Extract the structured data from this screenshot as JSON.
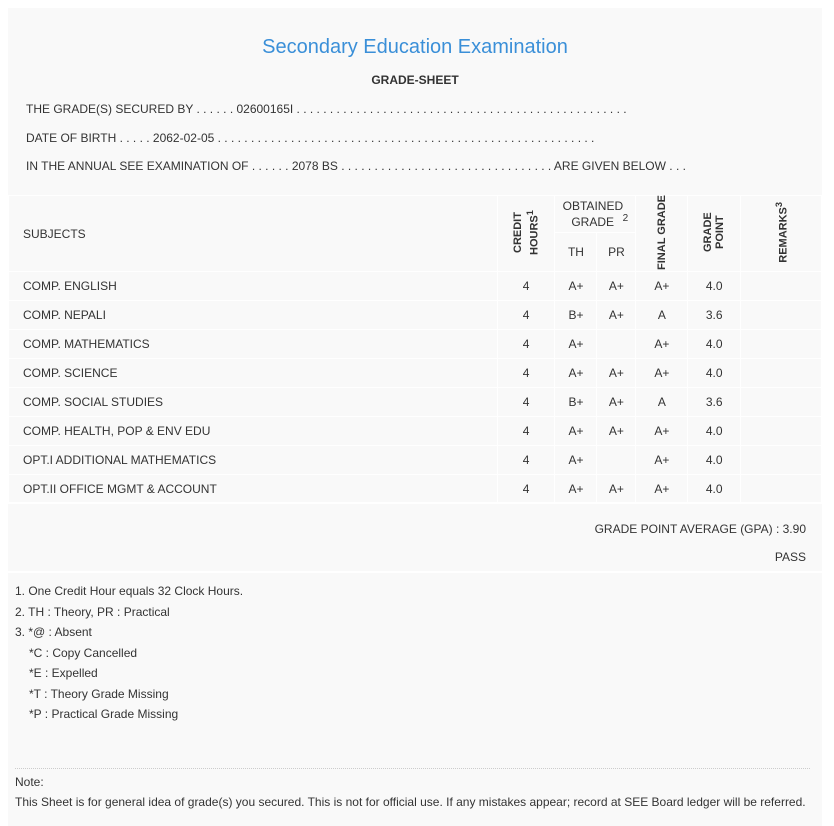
{
  "title": "Secondary Education Examination",
  "subtitle": "GRADE-SHEET",
  "info": {
    "secured_by": "THE GRADE(S) SECURED BY . . . . . . 02600165I . . . . . . . . . . . . . . . . . . . . . . . . . . . . . . . . . . . . . . . . . . . . . . . . . .",
    "dob": "DATE OF BIRTH . . . . . 2062-02-05 . . . . . . . . . . . . . . . . . . . . . . . . . . . . . . . . . . . . . . . . . . . . . . . . . . . . . . . . .",
    "exam": "IN THE ANNUAL SEE EXAMINATION OF . . . . . . 2078 BS . . . . . . . . . . . . . . . . . . . . . . . . . . . . . . . . ARE GIVEN BELOW . . ."
  },
  "table": {
    "headers": {
      "subjects": "SUBJECTS",
      "credit": "CREDIT HOURS",
      "credit_sup": "1",
      "obtained": "OBTAINED GRADE",
      "obtained_sup": "2",
      "th": "TH",
      "pr": "PR",
      "final": "FINAL GRADE",
      "point": "GRADE POINT",
      "remarks": "REMARKS",
      "remarks_sup": "3"
    },
    "rows": [
      {
        "subject": "COMP. ENGLISH",
        "credit": "4",
        "th": "A+",
        "pr": "A+",
        "final": "A+",
        "point": "4.0",
        "remarks": ""
      },
      {
        "subject": "COMP. NEPALI",
        "credit": "4",
        "th": "B+",
        "pr": "A+",
        "final": "A",
        "point": "3.6",
        "remarks": ""
      },
      {
        "subject": "COMP. MATHEMATICS",
        "credit": "4",
        "th": "A+",
        "pr": "",
        "final": "A+",
        "point": "4.0",
        "remarks": ""
      },
      {
        "subject": "COMP. SCIENCE",
        "credit": "4",
        "th": "A+",
        "pr": "A+",
        "final": "A+",
        "point": "4.0",
        "remarks": ""
      },
      {
        "subject": "COMP. SOCIAL STUDIES",
        "credit": "4",
        "th": "B+",
        "pr": "A+",
        "final": "A",
        "point": "3.6",
        "remarks": ""
      },
      {
        "subject": "COMP. HEALTH, POP & ENV EDU",
        "credit": "4",
        "th": "A+",
        "pr": "A+",
        "final": "A+",
        "point": "4.0",
        "remarks": ""
      },
      {
        "subject": "OPT.I ADDITIONAL MATHEMATICS",
        "credit": "4",
        "th": "A+",
        "pr": "",
        "final": "A+",
        "point": "4.0",
        "remarks": ""
      },
      {
        "subject": "OPT.II OFFICE MGMT & ACCOUNT",
        "credit": "4",
        "th": "A+",
        "pr": "A+",
        "final": "A+",
        "point": "4.0",
        "remarks": ""
      }
    ]
  },
  "gpa": "GRADE POINT AVERAGE (GPA) : 3.90",
  "result": "PASS",
  "footnotes": [
    "1. One Credit Hour equals 32 Clock Hours.",
    "2. TH : Theory, PR : Practical",
    "3. *@ : Absent",
    "*C : Copy Cancelled",
    "*E : Expelled",
    "*T : Theory Grade Missing",
    "*P : Practical Grade Missing"
  ],
  "note_label": "Note:",
  "note_text": "This Sheet is for general idea of grade(s) you secured. This is not for official use. If any mistakes appear; record at SEE Board ledger will be referred.",
  "colors": {
    "title": "#3a8fd8",
    "background": "#f9f9f9",
    "text": "#333333"
  }
}
